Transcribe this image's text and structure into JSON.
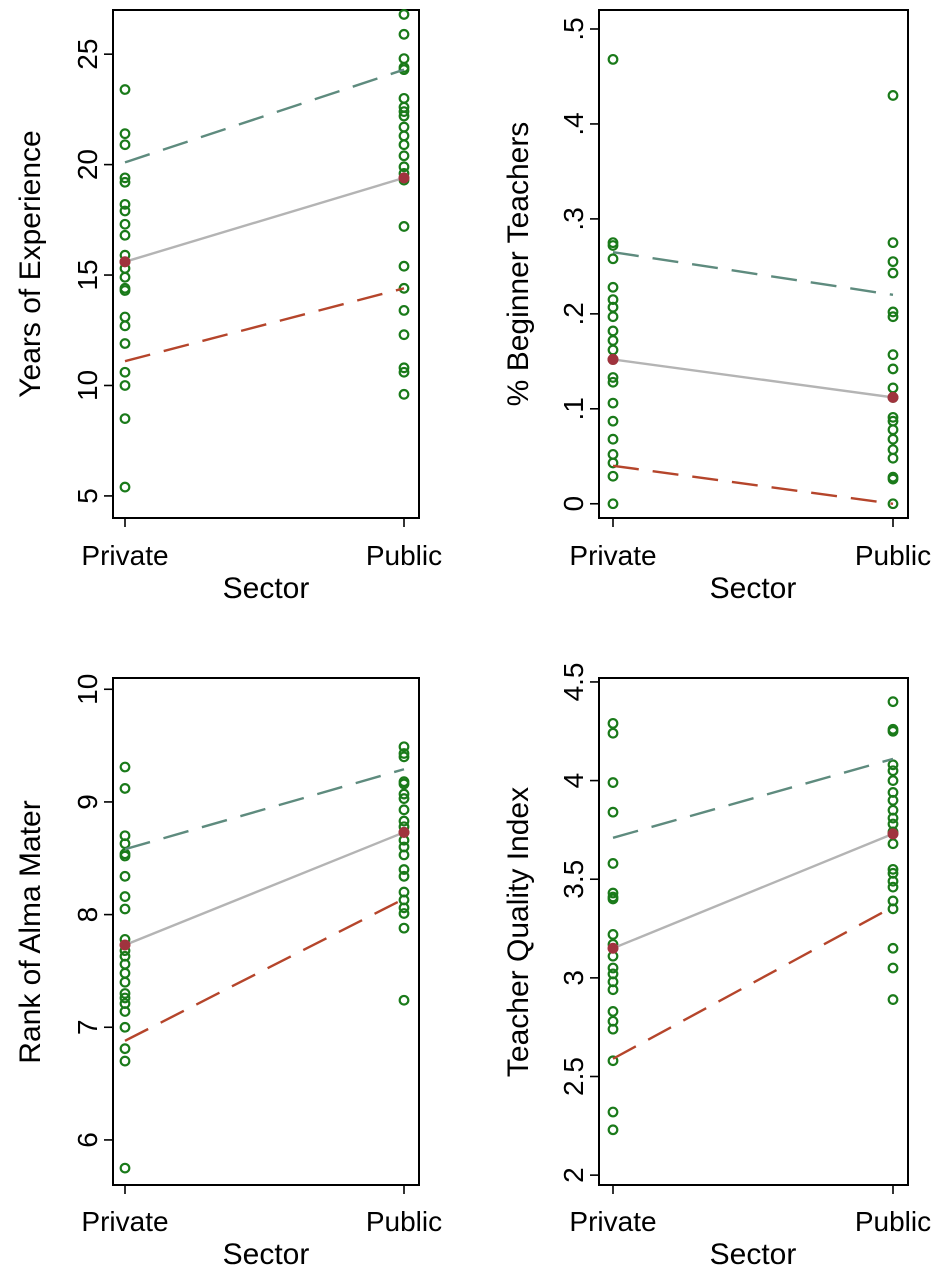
{
  "colors": {
    "points": "#1a7a1a",
    "mean_line": "#b4b4b4",
    "upper_line": "#5e8b7e",
    "lower_line": "#b5452b",
    "mean_marker": "#a0333e"
  },
  "chart_data": [
    {
      "type": "scatter",
      "xlabel": "Sector",
      "ylabel": "Years of Experience",
      "categories": [
        "Private",
        "Public"
      ],
      "ylim": [
        4,
        27
      ],
      "yticks": [
        5,
        10,
        15,
        20,
        25
      ],
      "ytick_labels": [
        "5",
        "10",
        "15",
        "20",
        "25"
      ],
      "points": {
        "Private": [
          23.4,
          21.4,
          20.9,
          19.4,
          19.2,
          18.2,
          17.9,
          17.3,
          16.8,
          15.9,
          15.6,
          15.3,
          14.9,
          14.4,
          14.3,
          13.1,
          12.7,
          11.9,
          10.6,
          10.0,
          8.5,
          5.4
        ],
        "Public": [
          26.8,
          25.9,
          24.8,
          24.4,
          24.3,
          23.0,
          22.6,
          22.4,
          22.2,
          21.7,
          21.3,
          20.9,
          20.4,
          19.9,
          19.6,
          19.3,
          17.2,
          15.4,
          14.4,
          13.4,
          12.3,
          10.8,
          10.6,
          9.6
        ]
      },
      "mean": [
        15.6,
        19.4
      ],
      "upper": [
        20.1,
        24.3
      ],
      "lower": [
        11.1,
        14.4
      ]
    },
    {
      "type": "scatter",
      "xlabel": "Sector",
      "ylabel": "% Beginner Teachers",
      "categories": [
        "Private",
        "Public"
      ],
      "ylim": [
        -0.015,
        0.52
      ],
      "yticks": [
        0,
        0.1,
        0.2,
        0.3,
        0.4,
        0.5
      ],
      "ytick_labels": [
        "0",
        ".1",
        ".2",
        ".3",
        ".4",
        ".5"
      ],
      "points": {
        "Private": [
          0.468,
          0.275,
          0.272,
          0.258,
          0.228,
          0.215,
          0.207,
          0.197,
          0.182,
          0.172,
          0.162,
          0.152,
          0.133,
          0.128,
          0.106,
          0.087,
          0.068,
          0.052,
          0.043,
          0.029,
          0.0
        ],
        "Public": [
          0.43,
          0.275,
          0.255,
          0.243,
          0.202,
          0.197,
          0.157,
          0.142,
          0.122,
          0.112,
          0.091,
          0.087,
          0.078,
          0.068,
          0.057,
          0.048,
          0.028,
          0.026,
          0.0
        ]
      },
      "mean": [
        0.152,
        0.112
      ],
      "upper": [
        0.265,
        0.22
      ],
      "lower": [
        0.04,
        0.0
      ]
    },
    {
      "type": "scatter",
      "xlabel": "Sector",
      "ylabel": "Rank of Alma Mater",
      "categories": [
        "Private",
        "Public"
      ],
      "ylim": [
        5.6,
        10.1
      ],
      "yticks": [
        6,
        7,
        8,
        9,
        10
      ],
      "ytick_labels": [
        "6",
        "7",
        "8",
        "9",
        "10"
      ],
      "points": {
        "Private": [
          9.31,
          9.12,
          8.7,
          8.63,
          8.54,
          8.52,
          8.34,
          8.16,
          8.05,
          7.78,
          7.68,
          7.63,
          7.56,
          7.48,
          7.4,
          7.3,
          7.26,
          7.21,
          7.14,
          7.0,
          6.81,
          6.7,
          5.75
        ],
        "Public": [
          9.49,
          9.43,
          9.4,
          9.18,
          9.16,
          9.07,
          9.03,
          8.93,
          8.83,
          8.78,
          8.73,
          8.66,
          8.6,
          8.53,
          8.4,
          8.34,
          8.2,
          8.13,
          8.06,
          8.01,
          7.88,
          7.24
        ]
      },
      "mean": [
        7.73,
        8.73
      ],
      "upper": [
        8.58,
        9.29
      ],
      "lower": [
        6.88,
        8.14
      ]
    },
    {
      "type": "scatter",
      "xlabel": "Sector",
      "ylabel": "Teacher Quality Index",
      "categories": [
        "Private",
        "Public"
      ],
      "ylim": [
        1.95,
        4.52
      ],
      "yticks": [
        2,
        2.5,
        3,
        3.5,
        4,
        4.5
      ],
      "ytick_labels": [
        "2",
        "2.5",
        "3",
        "3.5",
        "4",
        "4.5"
      ],
      "points": {
        "Private": [
          4.29,
          4.24,
          3.99,
          3.84,
          3.58,
          3.43,
          3.41,
          3.4,
          3.22,
          3.17,
          3.11,
          3.05,
          3.02,
          2.98,
          2.94,
          2.83,
          2.78,
          2.74,
          2.58,
          2.32,
          2.23
        ],
        "Public": [
          4.4,
          4.26,
          4.25,
          4.08,
          4.05,
          4.0,
          3.94,
          3.9,
          3.85,
          3.81,
          3.78,
          3.74,
          3.68,
          3.55,
          3.53,
          3.49,
          3.46,
          3.39,
          3.35,
          3.15,
          3.05,
          2.89
        ]
      },
      "mean": [
        3.15,
        3.73
      ],
      "upper": [
        3.71,
        4.11
      ],
      "lower": [
        2.59,
        3.36
      ]
    }
  ]
}
